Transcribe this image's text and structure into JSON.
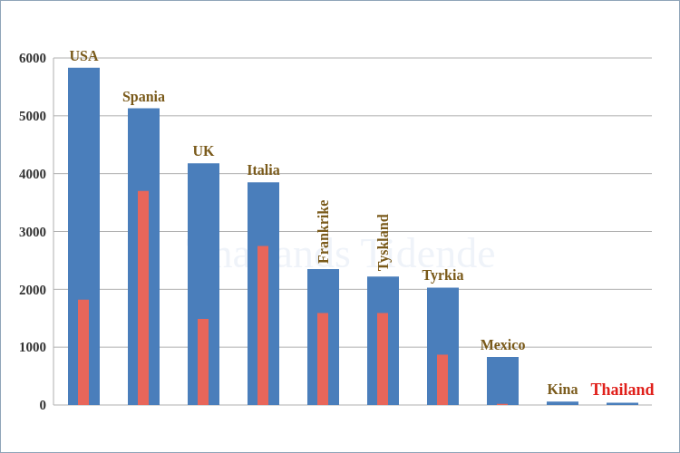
{
  "chart_data": {
    "type": "bar",
    "categories": [
      "USA",
      "Spania",
      "UK",
      "Italia",
      "Frankrike",
      "Tyskland",
      "Tyrkia",
      "Mexico",
      "Kina",
      "Thailand"
    ],
    "series": [
      {
        "color": "#4a7ebb",
        "values": [
          5830,
          5130,
          4180,
          3850,
          2350,
          2220,
          2030,
          830,
          60,
          40
        ]
      },
      {
        "color": "#e8665a",
        "values": [
          1820,
          3700,
          1490,
          2750,
          1590,
          1590,
          870,
          20,
          0,
          0
        ]
      }
    ],
    "ylim": [
      0,
      6000
    ],
    "yticks": [
      0,
      1000,
      2000,
      3000,
      4000,
      5000,
      6000
    ],
    "grid": true,
    "annotations": [
      "Thailands Tidende"
    ]
  }
}
